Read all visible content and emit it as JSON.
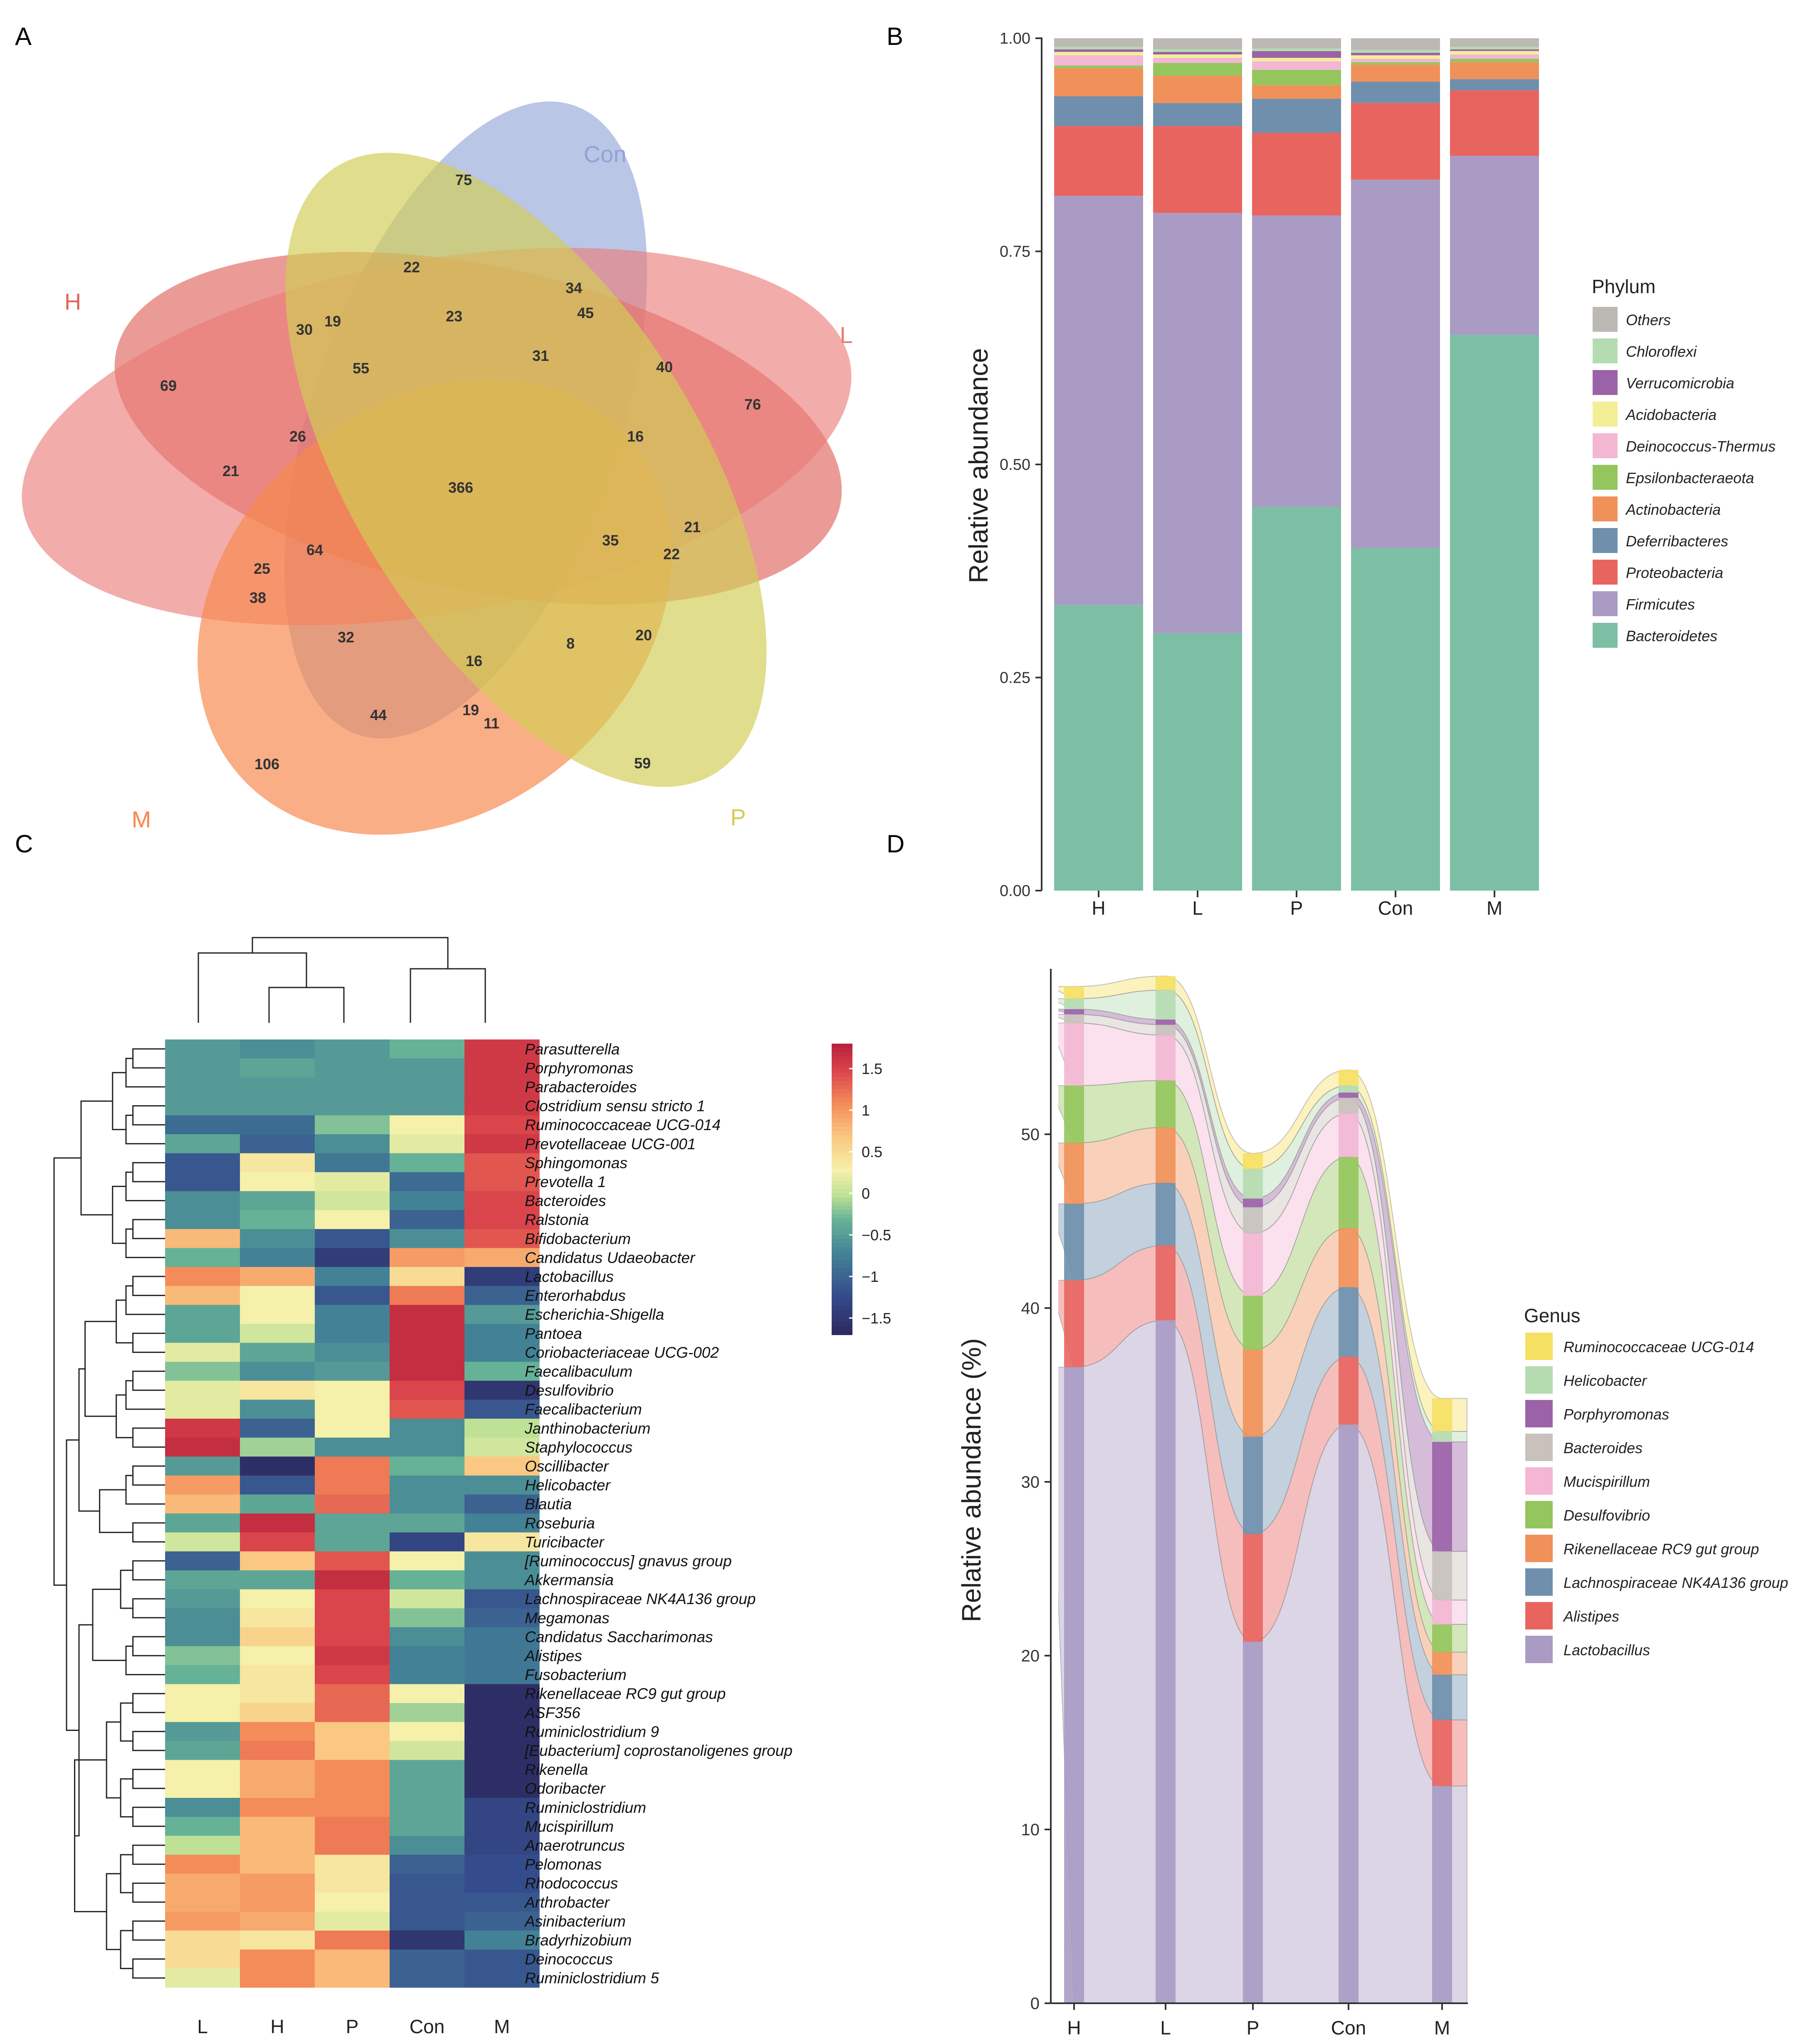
{
  "panel_labels": [
    "A",
    "B",
    "C",
    "D"
  ],
  "colors": {
    "Con": "#8fa3d6",
    "H": "#e0665e",
    "L": "#ea7b76",
    "M": "#f7874c",
    "P": "#d2cd55"
  },
  "chart_data": [
    {
      "type": "venn",
      "panel": "A",
      "sets": [
        "Con",
        "H",
        "L",
        "M",
        "P"
      ],
      "counts": [
        {
          "region": "Con only",
          "value": 75
        },
        {
          "region": "H only",
          "value": 69
        },
        {
          "region": "L only",
          "value": 76
        },
        {
          "region": "M only",
          "value": 106
        },
        {
          "region": "P only",
          "value": 59
        },
        {
          "region": "all",
          "value": 366
        },
        {
          "region": "r1",
          "value": 22
        },
        {
          "region": "r2",
          "value": 34
        },
        {
          "region": "r3",
          "value": 45
        },
        {
          "region": "r4",
          "value": 23
        },
        {
          "region": "r5",
          "value": 30
        },
        {
          "region": "r6",
          "value": 19
        },
        {
          "region": "r7",
          "value": 55
        },
        {
          "region": "r8",
          "value": 31
        },
        {
          "region": "r9",
          "value": 40
        },
        {
          "region": "r10",
          "value": 26
        },
        {
          "region": "r11",
          "value": 16
        },
        {
          "region": "r12",
          "value": 21
        },
        {
          "region": "r13",
          "value": 21
        },
        {
          "region": "r14",
          "value": 35
        },
        {
          "region": "r15",
          "value": 22
        },
        {
          "region": "r16",
          "value": 64
        },
        {
          "region": "r17",
          "value": 25
        },
        {
          "region": "r18",
          "value": 38
        },
        {
          "region": "r19",
          "value": 32
        },
        {
          "region": "r20",
          "value": 8
        },
        {
          "region": "r21",
          "value": 20
        },
        {
          "region": "r22",
          "value": 16
        },
        {
          "region": "r23",
          "value": 44
        },
        {
          "region": "r24",
          "value": 19
        },
        {
          "region": "r25",
          "value": 11
        }
      ]
    },
    {
      "type": "stacked_bar",
      "panel": "B",
      "categories": [
        "H",
        "L",
        "P",
        "Con",
        "M"
      ],
      "ylabel": "Relative abundance",
      "ylim": [
        0,
        1
      ],
      "yticks": [
        "0.00",
        "0.25",
        "0.50",
        "0.75",
        "1.00"
      ],
      "legend_title": "Phylum",
      "series": [
        {
          "name": "Bacteroidetes",
          "color": "#7dbfa4",
          "values": [
            0.335,
            0.302,
            0.45,
            0.402,
            0.652
          ]
        },
        {
          "name": "Firmicutes",
          "color": "#a99bc3",
          "values": [
            0.48,
            0.493,
            0.342,
            0.432,
            0.21
          ]
        },
        {
          "name": "Proteobacteria",
          "color": "#e8655f",
          "values": [
            0.082,
            0.102,
            0.097,
            0.09,
            0.077
          ]
        },
        {
          "name": "Deferribacteres",
          "color": "#6f8fad",
          "values": [
            0.035,
            0.027,
            0.04,
            0.025,
            0.013
          ]
        },
        {
          "name": "Actinobacteria",
          "color": "#f0915a",
          "values": [
            0.033,
            0.032,
            0.016,
            0.02,
            0.02
          ]
        },
        {
          "name": "Epsilonbacteraeota",
          "color": "#95c55d",
          "values": [
            0.003,
            0.015,
            0.018,
            0.003,
            0.004
          ]
        },
        {
          "name": "Deinococcus-Thermus",
          "color": "#f3b7d3",
          "values": [
            0.012,
            0.006,
            0.01,
            0.004,
            0.005
          ]
        },
        {
          "name": "Acidobacteria",
          "color": "#f4ef97",
          "values": [
            0.004,
            0.004,
            0.004,
            0.004,
            0.004
          ]
        },
        {
          "name": "Verrucomicrobia",
          "color": "#9c62a8",
          "values": [
            0.003,
            0.003,
            0.008,
            0.003,
            0.002
          ]
        },
        {
          "name": "Chloroflexi",
          "color": "#b5dcb1",
          "values": [
            0.003,
            0.003,
            0.003,
            0.003,
            0.003
          ]
        },
        {
          "name": "Others",
          "color": "#bcb8b4",
          "values": [
            0.01,
            0.013,
            0.012,
            0.014,
            0.01
          ]
        }
      ]
    },
    {
      "type": "heatmap",
      "panel": "C",
      "columns": [
        "L",
        "H",
        "P",
        "Con",
        "M"
      ],
      "color_scale": {
        "ticks": [
          "1.5",
          "1",
          "0.5",
          "0",
          "−0.5",
          "−1",
          "−1.5"
        ],
        "range": [
          -1.7,
          1.8
        ]
      },
      "rows": [
        {
          "name": "Parasutterella",
          "values": [
            -0.5,
            -0.6,
            -0.5,
            -0.3,
            1.6
          ]
        },
        {
          "name": "Porphyromonas",
          "values": [
            -0.5,
            -0.4,
            -0.5,
            -0.5,
            1.6
          ]
        },
        {
          "name": "Parabacteroides",
          "values": [
            -0.5,
            -0.5,
            -0.5,
            -0.5,
            1.6
          ]
        },
        {
          "name": "Clostridium sensu stricto 1",
          "values": [
            -0.5,
            -0.5,
            -0.5,
            -0.5,
            1.6
          ]
        },
        {
          "name": "Ruminococcaceae UCG-014",
          "values": [
            -0.9,
            -0.9,
            -0.2,
            0.3,
            1.5
          ]
        },
        {
          "name": "Prevotellaceae UCG-001",
          "values": [
            -0.4,
            -1.0,
            -0.6,
            0.2,
            1.6
          ]
        },
        {
          "name": "Sphingomonas",
          "values": [
            -1.1,
            0.4,
            -0.8,
            -0.3,
            1.4
          ]
        },
        {
          "name": "Prevotella 1",
          "values": [
            -1.1,
            0.3,
            0.2,
            -0.9,
            1.4
          ]
        },
        {
          "name": "Bacteroides",
          "values": [
            -0.6,
            -0.4,
            0.1,
            -0.7,
            1.5
          ]
        },
        {
          "name": "Ralstonia",
          "values": [
            -0.6,
            -0.3,
            0.3,
            -1.0,
            1.5
          ]
        },
        {
          "name": "Bifidobacterium",
          "values": [
            0.8,
            -0.6,
            -1.1,
            -0.6,
            1.4
          ]
        },
        {
          "name": "Candidatus Udaeobacter",
          "values": [
            -0.3,
            -0.7,
            -1.4,
            1.0,
            0.9
          ]
        },
        {
          "name": "Lactobacillus",
          "values": [
            1.1,
            0.9,
            -0.7,
            0.5,
            -1.4
          ]
        },
        {
          "name": "Enterorhabdus",
          "values": [
            0.8,
            0.3,
            -1.1,
            1.2,
            -1.0
          ]
        },
        {
          "name": "Escherichia-Shigella",
          "values": [
            -0.4,
            0.3,
            -0.7,
            1.7,
            -0.5
          ]
        },
        {
          "name": "Pantoea",
          "values": [
            -0.4,
            0.1,
            -0.7,
            1.7,
            -0.7
          ]
        },
        {
          "name": "Coriobacteriaceae UCG-002",
          "values": [
            0.2,
            -0.4,
            -0.6,
            1.7,
            -0.7
          ]
        },
        {
          "name": "Faecalibaculum",
          "values": [
            -0.2,
            -0.6,
            -0.5,
            1.7,
            -0.3
          ]
        },
        {
          "name": "Desulfovibrio",
          "values": [
            0.2,
            0.4,
            0.3,
            1.5,
            -1.5
          ]
        },
        {
          "name": "Faecalibacterium",
          "values": [
            0.2,
            -0.6,
            0.3,
            1.4,
            -1.1
          ]
        },
        {
          "name": "Janthinobacterium",
          "values": [
            1.6,
            -1.0,
            0.3,
            -0.6,
            0.0
          ]
        },
        {
          "name": "Staphylococcus",
          "values": [
            1.7,
            -0.1,
            -0.6,
            -0.6,
            0.1
          ]
        },
        {
          "name": "Oscillibacter",
          "values": [
            -0.5,
            -1.6,
            1.2,
            -0.3,
            0.7
          ]
        },
        {
          "name": "Helicobacter",
          "values": [
            1.0,
            -1.1,
            1.2,
            -0.6,
            -0.6
          ]
        },
        {
          "name": "Blautia",
          "values": [
            0.8,
            -0.4,
            1.3,
            -0.6,
            -1.0
          ]
        },
        {
          "name": "Roseburia",
          "values": [
            -0.4,
            1.7,
            -0.4,
            -0.4,
            -0.7
          ]
        },
        {
          "name": "Turicibacter",
          "values": [
            0.1,
            1.5,
            -0.4,
            -1.3,
            0.4
          ]
        },
        {
          "name": "[Ruminococcus] gnavus group",
          "values": [
            -1.0,
            0.7,
            1.4,
            0.3,
            -0.6
          ]
        },
        {
          "name": "Akkermansia",
          "values": [
            -0.4,
            -0.4,
            1.7,
            -0.3,
            -0.6
          ]
        },
        {
          "name": "Lachnospiraceae NK4A136 group",
          "values": [
            -0.5,
            0.3,
            1.5,
            0.1,
            -1.1
          ]
        },
        {
          "name": "Megamonas",
          "values": [
            -0.6,
            0.4,
            1.5,
            -0.2,
            -1.0
          ]
        },
        {
          "name": "Candidatus Saccharimonas",
          "values": [
            -0.6,
            0.6,
            1.5,
            -0.6,
            -0.8
          ]
        },
        {
          "name": "Alistipes",
          "values": [
            -0.2,
            0.3,
            1.6,
            -0.7,
            -0.8
          ]
        },
        {
          "name": "Fusobacterium",
          "values": [
            -0.3,
            0.4,
            1.5,
            -0.7,
            -0.8
          ]
        },
        {
          "name": "Rikenellaceae RC9 gut group",
          "values": [
            0.3,
            0.4,
            1.3,
            0.3,
            -1.6
          ]
        },
        {
          "name": "ASF356",
          "values": [
            0.3,
            0.6,
            1.3,
            -0.1,
            -1.6
          ]
        },
        {
          "name": "Ruminiclostridium 9",
          "values": [
            -0.5,
            1.1,
            0.7,
            0.3,
            -1.6
          ]
        },
        {
          "name": "[Eubacterium] coprostanoligenes group",
          "values": [
            -0.4,
            1.2,
            0.7,
            0.1,
            -1.6
          ]
        },
        {
          "name": "Rikenella",
          "values": [
            0.3,
            0.9,
            1.1,
            -0.4,
            -1.6
          ]
        },
        {
          "name": "Odoribacter",
          "values": [
            0.3,
            0.9,
            1.1,
            -0.4,
            -1.6
          ]
        },
        {
          "name": "Ruminiclostridium",
          "values": [
            -0.6,
            1.1,
            1.1,
            -0.4,
            -1.3
          ]
        },
        {
          "name": "Mucispirillum",
          "values": [
            -0.3,
            0.8,
            1.2,
            -0.4,
            -1.3
          ]
        },
        {
          "name": "Anaerotruncus",
          "values": [
            0.0,
            0.8,
            1.2,
            -0.6,
            -1.3
          ]
        },
        {
          "name": "Pelomonas",
          "values": [
            1.1,
            0.8,
            0.4,
            -1.0,
            -1.2
          ]
        },
        {
          "name": "Rhodococcus",
          "values": [
            0.9,
            1.0,
            0.4,
            -1.1,
            -1.2
          ]
        },
        {
          "name": "Arthrobacter",
          "values": [
            0.9,
            1.0,
            0.3,
            -1.1,
            -1.1
          ]
        },
        {
          "name": "Asinibacterium",
          "values": [
            1.0,
            0.9,
            0.2,
            -1.1,
            -1.0
          ]
        },
        {
          "name": "Bradyrhizobium",
          "values": [
            0.5,
            0.4,
            1.2,
            -1.5,
            -0.7
          ]
        },
        {
          "name": "Deinococcus",
          "values": [
            0.5,
            1.1,
            0.8,
            -1.0,
            -1.1
          ]
        },
        {
          "name": "Ruminiclostridium 5",
          "values": [
            0.2,
            1.1,
            0.8,
            -1.0,
            -1.1
          ]
        }
      ]
    },
    {
      "type": "area",
      "panel": "D",
      "categories": [
        "H",
        "L",
        "P",
        "Con",
        "M"
      ],
      "ylabel": "Relative abundance (%)",
      "ylim": [
        0,
        60
      ],
      "yticks": [
        "0",
        "10",
        "20",
        "30",
        "40",
        "50"
      ],
      "legend_title": "Genus",
      "series": [
        {
          "name": "Lactobacillus",
          "color": "#a99bc3",
          "values": [
            36.6,
            39.3,
            20.8,
            33.3,
            12.5
          ]
        },
        {
          "name": "Alistipes",
          "color": "#e8655f",
          "values": [
            5.0,
            4.3,
            6.2,
            3.9,
            3.8
          ]
        },
        {
          "name": "Lachnospiraceae NK4A136 group",
          "color": "#6f8fad",
          "values": [
            4.4,
            3.6,
            5.6,
            4.0,
            2.6
          ]
        },
        {
          "name": "Rikenellaceae RC9 gut group",
          "color": "#f0915a",
          "values": [
            3.5,
            3.2,
            5.0,
            3.4,
            1.3
          ]
        },
        {
          "name": "Desulfovibrio",
          "color": "#95c55d",
          "values": [
            3.3,
            2.7,
            3.1,
            4.1,
            1.6
          ]
        },
        {
          "name": "Mucispirillum",
          "color": "#f3b7d3",
          "values": [
            3.6,
            2.6,
            3.6,
            2.5,
            1.4
          ]
        },
        {
          "name": "Bacteroides",
          "color": "#c8c1bc",
          "values": [
            0.5,
            0.6,
            1.5,
            0.9,
            2.8
          ]
        },
        {
          "name": "Porphyromonas",
          "color": "#9c62a8",
          "values": [
            0.3,
            0.3,
            0.5,
            0.3,
            6.3
          ]
        },
        {
          "name": "Helicobacter",
          "color": "#b5dcb1",
          "values": [
            0.6,
            1.7,
            1.7,
            0.4,
            0.6
          ]
        },
        {
          "name": "Ruminococcaceae UCG-014",
          "color": "#f5e063",
          "values": [
            0.7,
            0.8,
            0.9,
            0.9,
            1.9
          ]
        }
      ]
    }
  ]
}
